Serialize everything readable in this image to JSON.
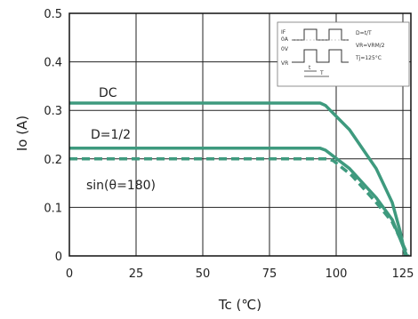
{
  "chart_data": {
    "type": "line",
    "xlabel": "Tc (℃)",
    "ylabel": "Io (A)",
    "xlim": [
      0,
      128
    ],
    "ylim": [
      0,
      0.5
    ],
    "xticks": [
      0,
      25,
      50,
      75,
      100,
      125
    ],
    "yticks": [
      0,
      0.1,
      0.2,
      0.3,
      0.4,
      0.5
    ],
    "x_tick_labels": [
      "0",
      "25",
      "50",
      "75",
      "100",
      "125"
    ],
    "y_tick_labels": [
      "0",
      "0.1",
      "0.2",
      "0.3",
      "0.4",
      "0.5"
    ],
    "grid": true,
    "series_color": "#3e9a7e",
    "series": [
      {
        "name": "DC",
        "style": "solid",
        "points": [
          [
            0,
            0.315
          ],
          [
            94,
            0.315
          ],
          [
            96,
            0.31
          ],
          [
            105,
            0.26
          ],
          [
            115,
            0.18
          ],
          [
            121,
            0.11
          ],
          [
            124,
            0.05
          ],
          [
            126,
            0.0
          ]
        ]
      },
      {
        "name": "D=1/2",
        "style": "solid",
        "points": [
          [
            0,
            0.222
          ],
          [
            94,
            0.222
          ],
          [
            96,
            0.218
          ],
          [
            105,
            0.18
          ],
          [
            115,
            0.12
          ],
          [
            121,
            0.075
          ],
          [
            124,
            0.035
          ],
          [
            126.5,
            0.0
          ]
        ]
      },
      {
        "name": "sin(θ=180)",
        "style": "dashed",
        "points": [
          [
            0,
            0.2
          ],
          [
            97,
            0.2
          ],
          [
            99,
            0.196
          ],
          [
            106,
            0.165
          ],
          [
            115,
            0.11
          ],
          [
            121,
            0.07
          ],
          [
            124.5,
            0.03
          ],
          [
            127,
            0.0
          ]
        ]
      }
    ],
    "series_labels": [
      "DC",
      "D=1/2",
      "sin(θ=180)"
    ],
    "inset": {
      "labels": [
        "D=t/T",
        "VR=VRM/2",
        "Tj=125°C"
      ],
      "row_labels": [
        "IF",
        "0A",
        "0V",
        "VR"
      ],
      "t_label": "t",
      "T_label": "T"
    }
  }
}
